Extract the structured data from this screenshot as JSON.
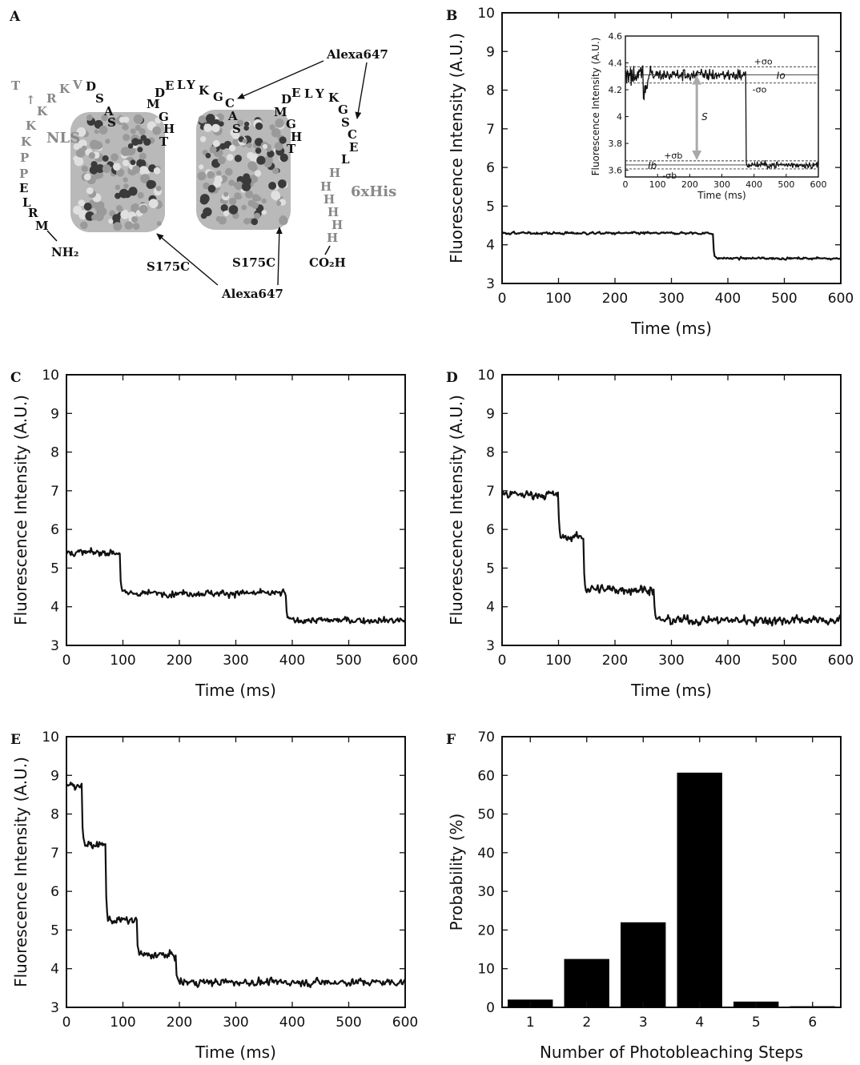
{
  "panel_a": {
    "letter": "A",
    "alexa_top": "Alexa647",
    "alexa_bottom": "Alexa647",
    "s175c_left": "S175C",
    "s175c_right": "S175C",
    "nls": "NLS",
    "his": "6xHis",
    "nh2": "NH₂",
    "co2h": "CO₂H"
  },
  "chart_data": [
    {
      "panel": "B",
      "type": "line",
      "xlabel": "Time (ms)",
      "ylabel": "Fluorescence Intensity (A.U.)",
      "xlim": [
        0,
        600
      ],
      "ylim": [
        3,
        10
      ],
      "xticks": [
        "0",
        "100",
        "200",
        "300",
        "400",
        "500",
        "600"
      ],
      "yticks": [
        "3",
        "4",
        "5",
        "6",
        "7",
        "8",
        "9",
        "10"
      ],
      "levels": [
        {
          "x0": 0,
          "x1": 375,
          "y": 4.3
        },
        {
          "x0": 375,
          "x1": 600,
          "y": 3.65
        }
      ],
      "noise": 0.05,
      "inset": {
        "xlabel": "Time (ms)",
        "ylabel": "Fluorescence Intensity (A.U.)",
        "xlim": [
          0,
          600
        ],
        "ylim": [
          3.55,
          4.6
        ],
        "xticks": [
          "0",
          "100",
          "200",
          "300",
          "400",
          "500",
          "600"
        ],
        "yticks": [
          "3.6",
          "3.8",
          "4",
          "4.2",
          "4.4",
          "4.6"
        ],
        "Io": 4.31,
        "sigma_o": 0.06,
        "Ib": 3.64,
        "sigma_b": 0.03,
        "labels": {
          "plus_sigma_o": "+σo",
          "minus_sigma_o": "-σo",
          "Io": "Io",
          "S": "S",
          "plus_sigma_b": "+σb",
          "minus_sigma_b": "-σb",
          "Ib": "Ib"
        }
      }
    },
    {
      "panel": "C",
      "type": "line",
      "xlabel": "Time (ms)",
      "ylabel": "Fluorescence Intensity (A.U.)",
      "xlim": [
        0,
        600
      ],
      "ylim": [
        3,
        10
      ],
      "xticks": [
        "0",
        "100",
        "200",
        "300",
        "400",
        "500",
        "600"
      ],
      "yticks": [
        "3",
        "4",
        "5",
        "6",
        "7",
        "8",
        "9",
        "10"
      ],
      "levels": [
        {
          "x0": 0,
          "x1": 95,
          "y": 5.4
        },
        {
          "x0": 95,
          "x1": 390,
          "y": 4.35
        },
        {
          "x0": 390,
          "x1": 600,
          "y": 3.65
        }
      ],
      "noise": 0.14
    },
    {
      "panel": "D",
      "type": "line",
      "xlabel": "Time (ms)",
      "ylabel": "Fluorescence Intensity (A.U.)",
      "xlim": [
        0,
        600
      ],
      "ylim": [
        3,
        10
      ],
      "xticks": [
        "0",
        "100",
        "200",
        "300",
        "400",
        "500",
        "600"
      ],
      "yticks": [
        "3",
        "4",
        "5",
        "6",
        "7",
        "8",
        "9",
        "10"
      ],
      "levels": [
        {
          "x0": 0,
          "x1": 100,
          "y": 6.9
        },
        {
          "x0": 100,
          "x1": 145,
          "y": 5.8
        },
        {
          "x0": 145,
          "x1": 270,
          "y": 4.45
        },
        {
          "x0": 270,
          "x1": 600,
          "y": 3.65
        }
      ],
      "noise": 0.2
    },
    {
      "panel": "E",
      "type": "line",
      "xlabel": "Time (ms)",
      "ylabel": "Fluorescence Intensity (A.U.)",
      "xlim": [
        0,
        600
      ],
      "ylim": [
        3,
        10
      ],
      "xticks": [
        "0",
        "100",
        "200",
        "300",
        "400",
        "500",
        "600"
      ],
      "yticks": [
        "3",
        "4",
        "5",
        "6",
        "7",
        "8",
        "9",
        "10"
      ],
      "levels": [
        {
          "x0": 0,
          "x1": 28,
          "y": 8.75
        },
        {
          "x0": 28,
          "x1": 70,
          "y": 7.2
        },
        {
          "x0": 70,
          "x1": 125,
          "y": 5.25
        },
        {
          "x0": 125,
          "x1": 195,
          "y": 4.35
        },
        {
          "x0": 195,
          "x1": 600,
          "y": 3.65
        }
      ],
      "noise": 0.16
    },
    {
      "panel": "F",
      "type": "bar",
      "xlabel": "Number of Photobleaching Steps",
      "ylabel": "Probability (%)",
      "ylim": [
        0,
        70
      ],
      "yticks": [
        "0",
        "10",
        "20",
        "30",
        "40",
        "50",
        "60",
        "70"
      ],
      "categories": [
        "1",
        "2",
        "3",
        "4",
        "5",
        "6"
      ],
      "values": [
        2,
        12.5,
        22,
        60.7,
        1.5,
        0.3
      ]
    }
  ]
}
